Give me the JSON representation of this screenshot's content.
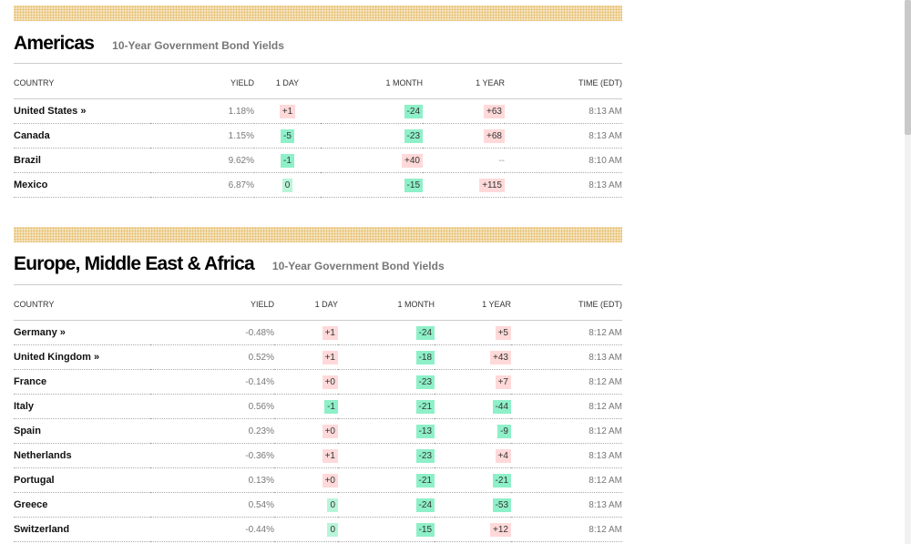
{
  "americas": {
    "title": "Americas",
    "subtitle": "10-Year Government Bond Yields",
    "columns": [
      "COUNTRY",
      "YIELD",
      "1 DAY",
      "1 MONTH",
      "1 YEAR",
      "TIME (EDT)"
    ],
    "rows": [
      {
        "country": "United States »",
        "yield": "1.18%",
        "day": "+1",
        "month": "-24",
        "year": "+63",
        "time": "8:13 AM"
      },
      {
        "country": "Canada",
        "yield": "1.15%",
        "day": "-5",
        "month": "-23",
        "year": "+68",
        "time": "8:13 AM"
      },
      {
        "country": "Brazil",
        "yield": "9.62%",
        "day": "-1",
        "month": "+40",
        "year": "--",
        "time": "8:10 AM"
      },
      {
        "country": "Mexico",
        "yield": "6.87%",
        "day": "0",
        "month": "-15",
        "year": "+115",
        "time": "8:13 AM"
      }
    ]
  },
  "emea": {
    "title": "Europe, Middle East & Africa",
    "subtitle": "10-Year Government Bond Yields",
    "columns": [
      "COUNTRY",
      "YIELD",
      "1 DAY",
      "1 MONTH",
      "1 YEAR",
      "TIME (EDT)"
    ],
    "rows": [
      {
        "country": "Germany »",
        "yield": "-0.48%",
        "day": "+1",
        "month": "-24",
        "year": "+5",
        "time": "8:12 AM"
      },
      {
        "country": "United Kingdom »",
        "yield": "0.52%",
        "day": "+1",
        "month": "-18",
        "year": "+43",
        "time": "8:13 AM"
      },
      {
        "country": "France",
        "yield": "-0.14%",
        "day": "+0",
        "month": "-23",
        "year": "+7",
        "time": "8:12 AM"
      },
      {
        "country": "Italy",
        "yield": "0.56%",
        "day": "-1",
        "month": "-21",
        "year": "-44",
        "time": "8:12 AM"
      },
      {
        "country": "Spain",
        "yield": "0.23%",
        "day": "+0",
        "month": "-13",
        "year": "-9",
        "time": "8:12 AM"
      },
      {
        "country": "Netherlands",
        "yield": "-0.36%",
        "day": "+1",
        "month": "-23",
        "year": "+4",
        "time": "8:13 AM"
      },
      {
        "country": "Portugal",
        "yield": "0.13%",
        "day": "+0",
        "month": "-21",
        "year": "-21",
        "time": "8:12 AM"
      },
      {
        "country": "Greece",
        "yield": "0.54%",
        "day": "0",
        "month": "-24",
        "year": "-53",
        "time": "8:13 AM"
      },
      {
        "country": "Switzerland",
        "yield": "-0.44%",
        "day": "0",
        "month": "-15",
        "year": "+12",
        "time": "8:12 AM"
      }
    ]
  },
  "colors": {
    "negative": "#8ef0c8",
    "positive": "#ffd9d9",
    "zero": "#b8f5d8",
    "divider_dots": "#e4b865"
  }
}
